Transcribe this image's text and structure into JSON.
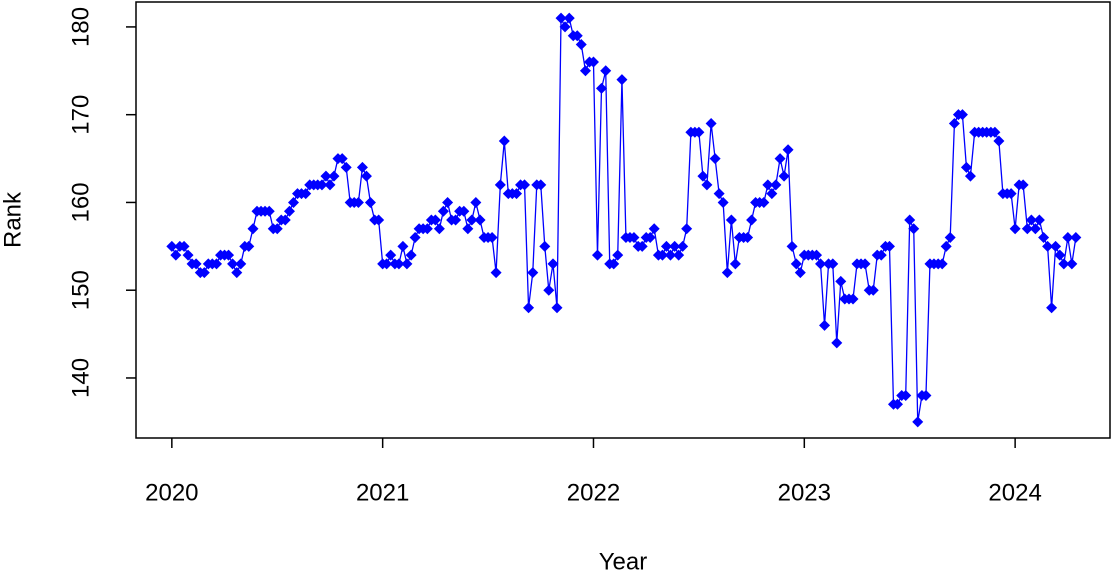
{
  "chart_data": {
    "type": "line",
    "x_label": "Year",
    "y_label": "Rank",
    "xlim": [
      2019.83,
      2024.45
    ],
    "ylim": [
      133.16,
      182.84
    ],
    "xticks": [
      2020,
      2021,
      2022,
      2023,
      2024
    ],
    "yticks": [
      140,
      150,
      160,
      170,
      180
    ],
    "marker": "diamond",
    "series": [
      {
        "color": "#0000ff",
        "x": [
          2020,
          2020.019,
          2020.038,
          2020.058,
          2020.077,
          2020.096,
          2020.115,
          2020.135,
          2020.154,
          2020.173,
          2020.192,
          2020.212,
          2020.231,
          2020.25,
          2020.269,
          2020.288,
          2020.308,
          2020.327,
          2020.346,
          2020.365,
          2020.385,
          2020.404,
          2020.423,
          2020.442,
          2020.462,
          2020.481,
          2020.5,
          2020.519,
          2020.538,
          2020.558,
          2020.577,
          2020.596,
          2020.615,
          2020.635,
          2020.654,
          2020.673,
          2020.692,
          2020.712,
          2020.731,
          2020.75,
          2020.769,
          2020.788,
          2020.808,
          2020.827,
          2020.846,
          2020.865,
          2020.885,
          2020.904,
          2020.923,
          2020.942,
          2020.962,
          2020.981,
          2021,
          2021.019,
          2021.038,
          2021.058,
          2021.077,
          2021.096,
          2021.115,
          2021.135,
          2021.154,
          2021.173,
          2021.192,
          2021.212,
          2021.231,
          2021.25,
          2021.269,
          2021.288,
          2021.308,
          2021.327,
          2021.346,
          2021.365,
          2021.385,
          2021.404,
          2021.423,
          2021.442,
          2021.462,
          2021.481,
          2021.5,
          2021.519,
          2021.538,
          2021.558,
          2021.577,
          2021.596,
          2021.615,
          2021.635,
          2021.654,
          2021.673,
          2021.692,
          2021.712,
          2021.731,
          2021.75,
          2021.769,
          2021.788,
          2021.808,
          2021.827,
          2021.846,
          2021.865,
          2021.885,
          2021.904,
          2021.923,
          2021.942,
          2021.962,
          2021.981,
          2022,
          2022.019,
          2022.038,
          2022.058,
          2022.077,
          2022.096,
          2022.115,
          2022.135,
          2022.154,
          2022.173,
          2022.192,
          2022.212,
          2022.231,
          2022.25,
          2022.269,
          2022.288,
          2022.308,
          2022.327,
          2022.346,
          2022.365,
          2022.385,
          2022.404,
          2022.423,
          2022.442,
          2022.462,
          2022.481,
          2022.5,
          2022.519,
          2022.538,
          2022.558,
          2022.577,
          2022.596,
          2022.615,
          2022.635,
          2022.654,
          2022.673,
          2022.692,
          2022.712,
          2022.731,
          2022.75,
          2022.769,
          2022.788,
          2022.808,
          2022.827,
          2022.846,
          2022.865,
          2022.885,
          2022.904,
          2022.923,
          2022.942,
          2022.962,
          2022.981,
          2023,
          2023.019,
          2023.038,
          2023.058,
          2023.077,
          2023.096,
          2023.115,
          2023.135,
          2023.154,
          2023.173,
          2023.192,
          2023.212,
          2023.231,
          2023.25,
          2023.269,
          2023.288,
          2023.308,
          2023.327,
          2023.346,
          2023.365,
          2023.385,
          2023.404,
          2023.423,
          2023.442,
          2023.462,
          2023.481,
          2023.5,
          2023.519,
          2023.538,
          2023.558,
          2023.577,
          2023.596,
          2023.615,
          2023.635,
          2023.654,
          2023.673,
          2023.692,
          2023.712,
          2023.731,
          2023.75,
          2023.769,
          2023.788,
          2023.808,
          2023.827,
          2023.846,
          2023.865,
          2023.885,
          2023.904,
          2023.923,
          2023.942,
          2023.962,
          2023.981,
          2024,
          2024.019,
          2024.038,
          2024.058,
          2024.077,
          2024.096,
          2024.115,
          2024.135,
          2024.154,
          2024.173,
          2024.192,
          2024.212,
          2024.231,
          2024.25,
          2024.269,
          2024.288
        ],
        "values": [
          155,
          154,
          155,
          155,
          154,
          153,
          153,
          152,
          152,
          153,
          153,
          153,
          154,
          154,
          154,
          153,
          152,
          153,
          155,
          155,
          157,
          159,
          159,
          159,
          159,
          157,
          157,
          158,
          158,
          159,
          160,
          161,
          161,
          161,
          162,
          162,
          162,
          162,
          163,
          162,
          163,
          165,
          165,
          164,
          160,
          160,
          160,
          164,
          163,
          160,
          158,
          158,
          153,
          153,
          154,
          153,
          153,
          155,
          153,
          154,
          156,
          157,
          157,
          157,
          158,
          158,
          157,
          159,
          160,
          158,
          158,
          159,
          159,
          157,
          158,
          160,
          158,
          156,
          156,
          156,
          152,
          162,
          167,
          161,
          161,
          161,
          162,
          162,
          148,
          152,
          162,
          162,
          155,
          150,
          153,
          148,
          181,
          180,
          181,
          179,
          179,
          178,
          175,
          176,
          176,
          154,
          173,
          175,
          153,
          153,
          154,
          174,
          156,
          156,
          156,
          155,
          155,
          156,
          156,
          157,
          154,
          154,
          155,
          154,
          155,
          154,
          155,
          157,
          168,
          168,
          168,
          163,
          162,
          169,
          165,
          161,
          160,
          152,
          158,
          153,
          156,
          156,
          156,
          158,
          160,
          160,
          160,
          162,
          161,
          162,
          165,
          163,
          166,
          155,
          153,
          152,
          154,
          154,
          154,
          154,
          153,
          146,
          153,
          153,
          144,
          151,
          149,
          149,
          149,
          153,
          153,
          153,
          150,
          150,
          154,
          154,
          155,
          155,
          137,
          137,
          138,
          138,
          158,
          157,
          135,
          138,
          138,
          153,
          153,
          153,
          153,
          155,
          156,
          169,
          170,
          170,
          164,
          163,
          168,
          168,
          168,
          168,
          168,
          168,
          167,
          161,
          161,
          161,
          157,
          162,
          162,
          157,
          158,
          157,
          158,
          156,
          155,
          148,
          155,
          154,
          153,
          156,
          153,
          156
        ]
      }
    ]
  }
}
